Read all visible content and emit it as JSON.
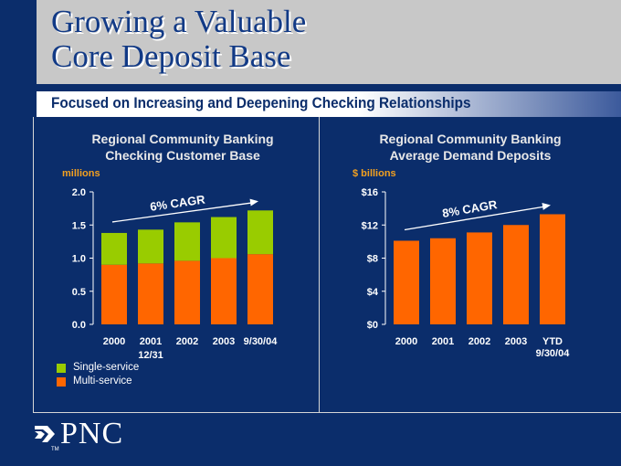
{
  "title": {
    "line1": "Growing a Valuable",
    "line2": "Core Deposit Base"
  },
  "subtitle": "Focused on Increasing and Deepening Checking Relationships",
  "colors": {
    "single": "#99cc00",
    "multi": "#ff6600",
    "arrow": "#ffffff",
    "unit": "#f2a020"
  },
  "brand": {
    "name": "PNC",
    "tm": "TM"
  },
  "chart_data": [
    {
      "type": "bar",
      "stacked": true,
      "title_line1": "Regional Community Banking",
      "title_line2": "Checking Customer Base",
      "unit_label": "millions",
      "categories": [
        "2000",
        "2001",
        "2002",
        "2003",
        "9/30/04"
      ],
      "sub_note": "12/31",
      "y_ticks": [
        "0.0",
        "0.5",
        "1.0",
        "1.5",
        "2.0"
      ],
      "ylim": [
        0,
        2.0
      ],
      "series": [
        {
          "name": "Multi-service",
          "values": [
            0.9,
            0.92,
            0.96,
            1.0,
            1.06
          ]
        },
        {
          "name": "Single-service",
          "values": [
            0.48,
            0.51,
            0.58,
            0.62,
            0.66
          ]
        }
      ],
      "annotation": "6% CAGR",
      "legend": [
        "Single-service",
        "Multi-service"
      ]
    },
    {
      "type": "bar",
      "stacked": false,
      "title_line1": "Regional Community Banking",
      "title_line2": "Average Demand Deposits",
      "unit_label": "$ billions",
      "categories": [
        "2000",
        "2001",
        "2002",
        "2003",
        "YTD"
      ],
      "category_sub": "9/30/04",
      "y_ticks": [
        "$0",
        "$4",
        "$8",
        "$12",
        "$16"
      ],
      "ylim": [
        0,
        16
      ],
      "values": [
        10.1,
        10.4,
        11.1,
        12.0,
        13.3
      ],
      "annotation": "8% CAGR"
    }
  ]
}
